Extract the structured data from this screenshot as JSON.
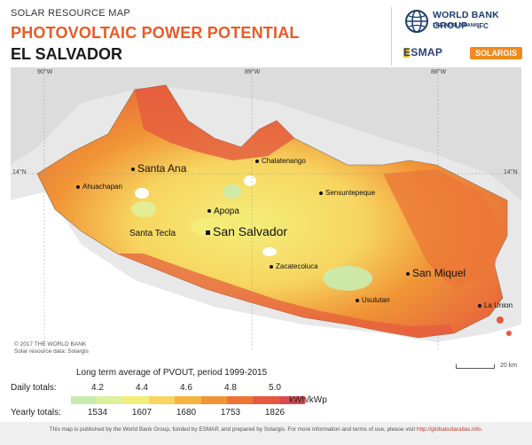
{
  "header": {
    "subtitle": "SOLAR RESOURCE MAP",
    "title": "PHOTOVOLTAIC POWER POTENTIAL",
    "country": "EL SALVADOR"
  },
  "logos": {
    "world_bank": "WORLD BANK GROUP",
    "world_bank_sub": "THE WORLD BANK",
    "ifc": "IFC",
    "esmap": "ESMAP",
    "solargis": "SOLARGIS"
  },
  "map": {
    "longitudes": [
      "90°W",
      "89°W",
      "88°W"
    ],
    "latitude": "14°N",
    "cities": {
      "santa_ana": "Santa Ana",
      "chalatenango": "Chalatenango",
      "ahuachapan": "Ahuachapan",
      "sensuntepeque": "Sensuntepeque",
      "apopa": "Apopa",
      "santa_tecla": "Santa Tecla",
      "san_salvador": "San Salvador",
      "zacatecoluca": "Zacatecoluca",
      "san_miguel": "San Miquel",
      "usulutan": "Usulutan",
      "la_union": "La Union"
    },
    "copyright_1": "© 2017 THE WORLD BANK",
    "copyright_2": "Solar resource data: Solargis",
    "scale_label": "20 km"
  },
  "legend": {
    "title": "Long term average of PVOUT, period 1999-2015",
    "daily_label": "Daily totals:",
    "yearly_label": "Yearly totals:",
    "daily_ticks": [
      "4.2",
      "4.4",
      "4.6",
      "4.8",
      "5.0"
    ],
    "yearly_ticks": [
      "1534",
      "1607",
      "1680",
      "1753",
      "1826"
    ],
    "unit": "kWh/kWp",
    "colors": [
      "#c8ecb0",
      "#dff09a",
      "#f3ee7a",
      "#f7d560",
      "#f5b442",
      "#f09436",
      "#ec7536",
      "#e55a3e",
      "#df4a52"
    ]
  },
  "footer": {
    "text": "This map is published by the World Bank Group, funded by ESMAP, and prepared by Solargis. For more information and terms of use, please visit",
    "link": "http://globalsolaratlas.info",
    "end": "."
  }
}
